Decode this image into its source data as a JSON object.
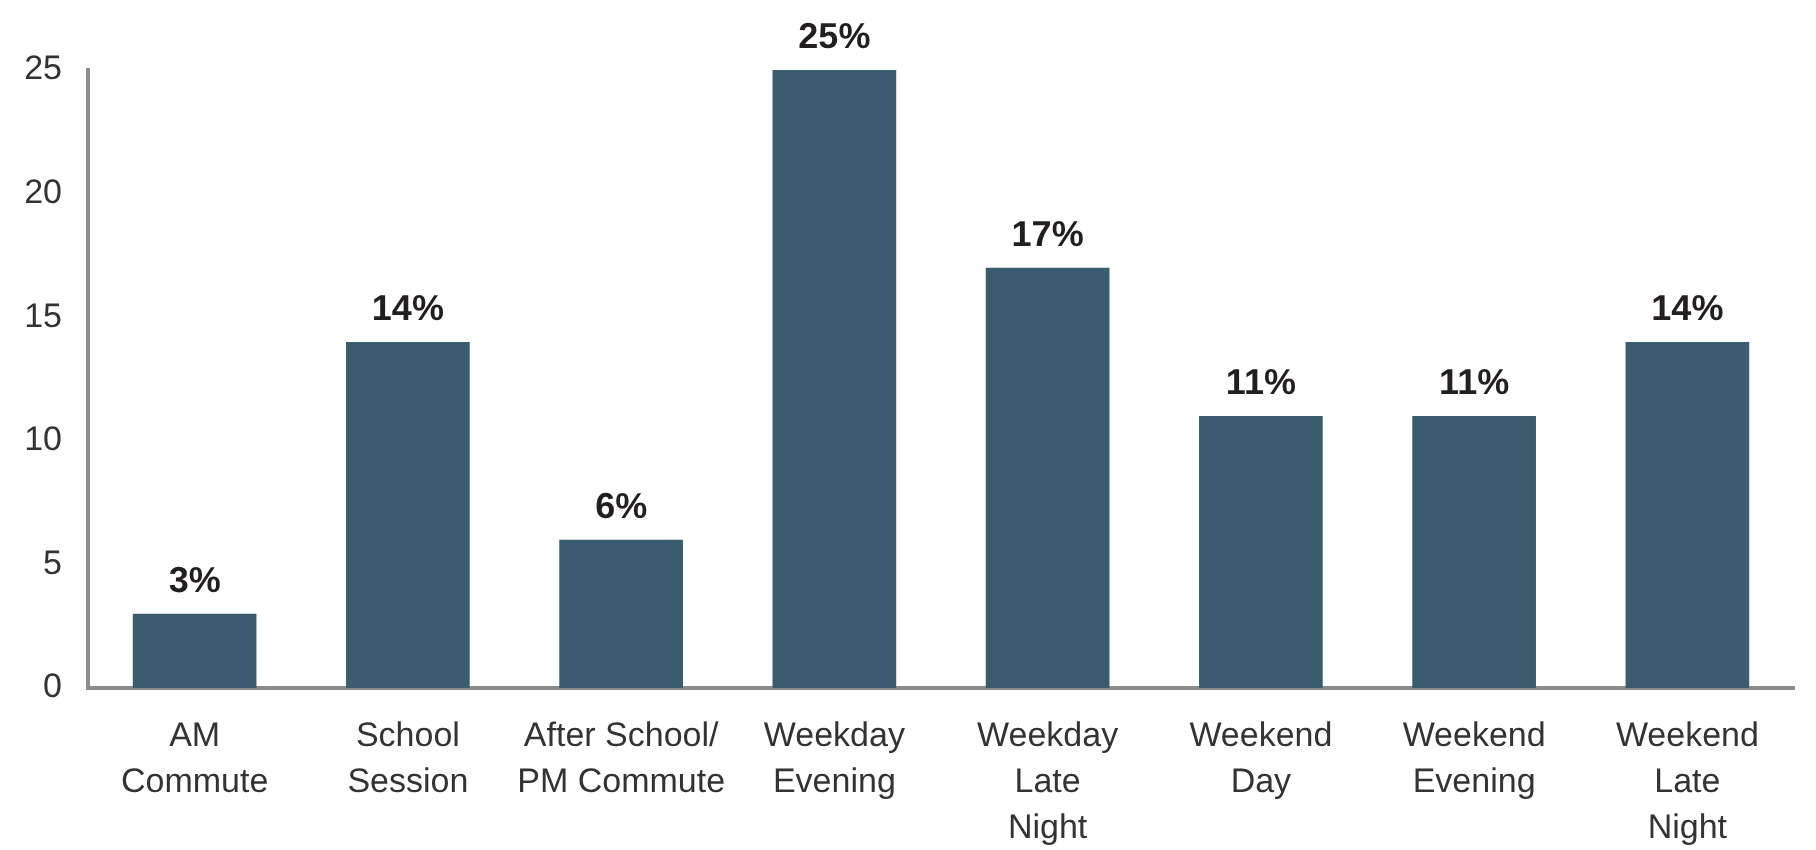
{
  "chart_data": {
    "type": "bar",
    "categories": [
      "AM\nCommute",
      "School\nSession",
      "After School/\nPM Commute",
      "Weekday\nEvening",
      "Weekday\nLate\nNight",
      "Weekend\nDay",
      "Weekend\nEvening",
      "Weekend\nLate\nNight"
    ],
    "values": [
      3,
      14,
      6,
      25,
      17,
      11,
      11,
      14
    ],
    "value_labels": [
      "3%",
      "14%",
      "6%",
      "25%",
      "17%",
      "11%",
      "11%",
      "14%"
    ],
    "color": "#3b5b6e",
    "ylim": [
      0,
      25
    ],
    "yticks": [
      0,
      5,
      10,
      15,
      20,
      25
    ]
  }
}
